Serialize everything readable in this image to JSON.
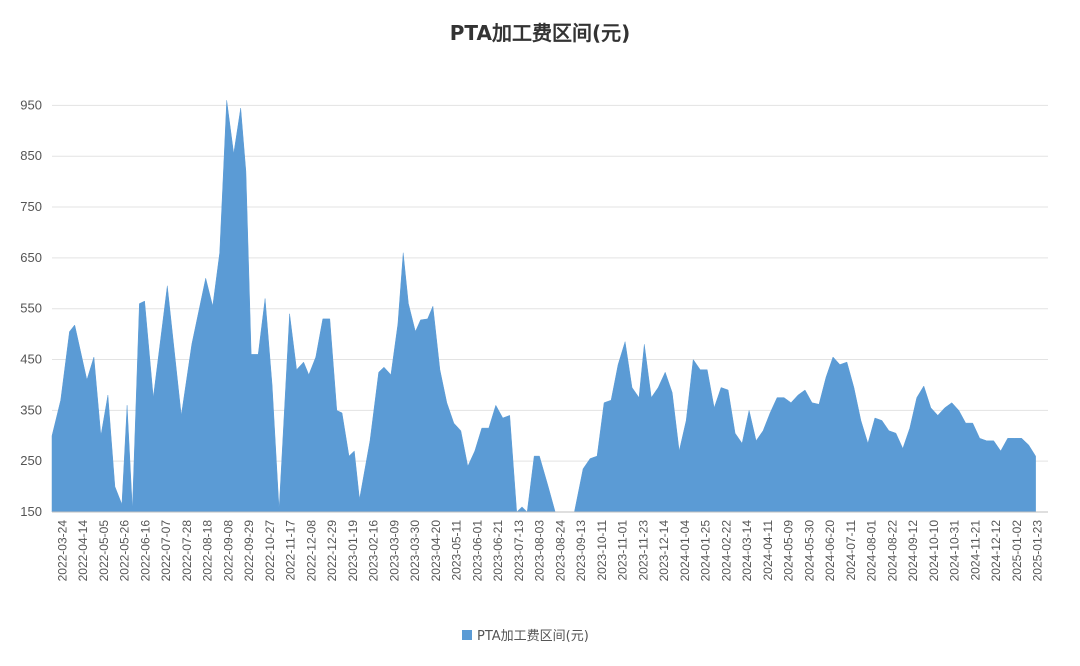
{
  "chart_data": {
    "type": "area",
    "title": "PTA加工费区间(元)",
    "xlabel": "",
    "ylabel": "",
    "ylim": [
      150,
      1000
    ],
    "yticks": [
      150,
      250,
      350,
      450,
      550,
      650,
      750,
      850,
      950
    ],
    "grid": true,
    "legend_position": "bottom",
    "color": "#5b9bd5",
    "x_tick_labels": [
      "2022-03-24",
      "2022-04-14",
      "2022-05-05",
      "2022-05-26",
      "2022-06-16",
      "2022-07-07",
      "2022-07-28",
      "2022-08-18",
      "2022-09-08",
      "2022-09-29",
      "2022-10-27",
      "2022-11-17",
      "2022-12-08",
      "2022-12-29",
      "2023-01-19",
      "2023-02-16",
      "2023-03-09",
      "2023-03-30",
      "2023-04-20",
      "2023-05-11",
      "2023-06-01",
      "2023-06-21",
      "2023-07-13",
      "2023-08-03",
      "2023-08-24",
      "2023-09-13",
      "2023-10-11",
      "2023-11-01",
      "2023-11-23",
      "2023-12-14",
      "2024-01-04",
      "2024-01-25",
      "2024-02-22",
      "2024-03-14",
      "2024-04-11",
      "2024-05-09",
      "2024-05-30",
      "2024-06-20",
      "2024-07-11",
      "2024-08-01",
      "2024-08-22",
      "2024-09-12",
      "2024-10-10",
      "2024-10-31",
      "2024-11-21",
      "2024-12-12",
      "2025-01-02",
      "2025-01-23"
    ],
    "series": [
      {
        "name": "PTA加工费区间(元)",
        "points": [
          [
            0,
            300
          ],
          [
            0.25,
            370
          ],
          [
            0.5,
            505
          ],
          [
            0.65,
            518
          ],
          [
            1.0,
            410
          ],
          [
            1.2,
            455
          ],
          [
            1.4,
            300
          ],
          [
            1.6,
            380
          ],
          [
            1.8,
            200
          ],
          [
            2.0,
            165
          ],
          [
            2.15,
            360
          ],
          [
            2.3,
            155
          ],
          [
            2.5,
            560
          ],
          [
            2.65,
            565
          ],
          [
            2.9,
            375
          ],
          [
            3.3,
            595
          ],
          [
            3.7,
            340
          ],
          [
            4.0,
            480
          ],
          [
            4.4,
            610
          ],
          [
            4.6,
            555
          ],
          [
            4.8,
            660
          ],
          [
            5.0,
            960
          ],
          [
            5.2,
            855
          ],
          [
            5.4,
            945
          ],
          [
            5.55,
            820
          ],
          [
            5.7,
            460
          ],
          [
            5.9,
            460
          ],
          [
            6.1,
            570
          ],
          [
            6.3,
            400
          ],
          [
            6.5,
            155
          ],
          [
            6.8,
            540
          ],
          [
            7.0,
            430
          ],
          [
            7.2,
            445
          ],
          [
            7.35,
            420
          ],
          [
            7.55,
            455
          ],
          [
            7.75,
            530
          ],
          [
            7.95,
            530
          ],
          [
            8.15,
            350
          ],
          [
            8.3,
            345
          ],
          [
            8.5,
            260
          ],
          [
            8.65,
            270
          ],
          [
            8.8,
            175
          ],
          [
            9.1,
            290
          ],
          [
            9.35,
            425
          ],
          [
            9.5,
            435
          ],
          [
            9.7,
            420
          ],
          [
            9.9,
            520
          ],
          [
            10.05,
            660
          ],
          [
            10.2,
            560
          ],
          [
            10.4,
            505
          ],
          [
            10.55,
            528
          ],
          [
            10.75,
            530
          ],
          [
            10.9,
            555
          ],
          [
            11.1,
            430
          ],
          [
            11.3,
            365
          ],
          [
            11.5,
            325
          ],
          [
            11.7,
            310
          ],
          [
            11.9,
            240
          ],
          [
            12.1,
            270
          ],
          [
            12.3,
            315
          ],
          [
            12.5,
            315
          ],
          [
            12.7,
            360
          ],
          [
            12.9,
            335
          ],
          [
            13.1,
            340
          ],
          [
            13.3,
            150
          ],
          [
            13.45,
            160
          ],
          [
            13.6,
            150
          ],
          [
            13.8,
            260
          ],
          [
            13.95,
            260
          ],
          [
            14.2,
            200
          ],
          [
            14.4,
            150
          ],
          [
            14.95,
            150
          ],
          [
            15.2,
            235
          ],
          [
            15.4,
            255
          ],
          [
            15.6,
            260
          ],
          [
            15.8,
            365
          ],
          [
            16.0,
            370
          ],
          [
            16.2,
            440
          ],
          [
            16.4,
            485
          ],
          [
            16.6,
            395
          ],
          [
            16.8,
            375
          ],
          [
            16.95,
            480
          ],
          [
            17.15,
            375
          ],
          [
            17.35,
            395
          ],
          [
            17.55,
            425
          ],
          [
            17.75,
            385
          ],
          [
            17.95,
            270
          ],
          [
            18.15,
            330
          ],
          [
            18.35,
            450
          ],
          [
            18.55,
            430
          ],
          [
            18.75,
            430
          ],
          [
            18.95,
            355
          ],
          [
            19.15,
            395
          ],
          [
            19.35,
            390
          ],
          [
            19.55,
            305
          ],
          [
            19.75,
            285
          ],
          [
            19.95,
            350
          ],
          [
            20.15,
            290
          ],
          [
            20.35,
            310
          ],
          [
            20.55,
            345
          ],
          [
            20.75,
            375
          ],
          [
            20.95,
            375
          ],
          [
            21.15,
            365
          ],
          [
            21.35,
            380
          ],
          [
            21.55,
            390
          ],
          [
            21.75,
            365
          ],
          [
            21.95,
            362
          ],
          [
            22.15,
            415
          ],
          [
            22.35,
            455
          ],
          [
            22.55,
            440
          ],
          [
            22.75,
            445
          ],
          [
            22.95,
            395
          ],
          [
            23.15,
            330
          ],
          [
            23.35,
            285
          ],
          [
            23.55,
            335
          ],
          [
            23.75,
            330
          ],
          [
            23.95,
            310
          ],
          [
            24.15,
            305
          ],
          [
            24.35,
            275
          ],
          [
            24.55,
            315
          ],
          [
            24.75,
            375
          ],
          [
            24.95,
            398
          ],
          [
            25.15,
            355
          ],
          [
            25.35,
            340
          ],
          [
            25.55,
            355
          ],
          [
            25.75,
            365
          ],
          [
            25.95,
            350
          ],
          [
            26.15,
            325
          ],
          [
            26.35,
            325
          ],
          [
            26.55,
            295
          ],
          [
            26.75,
            290
          ],
          [
            26.95,
            290
          ],
          [
            27.15,
            270
          ],
          [
            27.35,
            295
          ],
          [
            27.55,
            295
          ],
          [
            27.75,
            295
          ],
          [
            27.95,
            282
          ],
          [
            28.15,
            260
          ]
        ]
      }
    ]
  },
  "legend": {
    "label": "PTA加工费区间(元)"
  }
}
